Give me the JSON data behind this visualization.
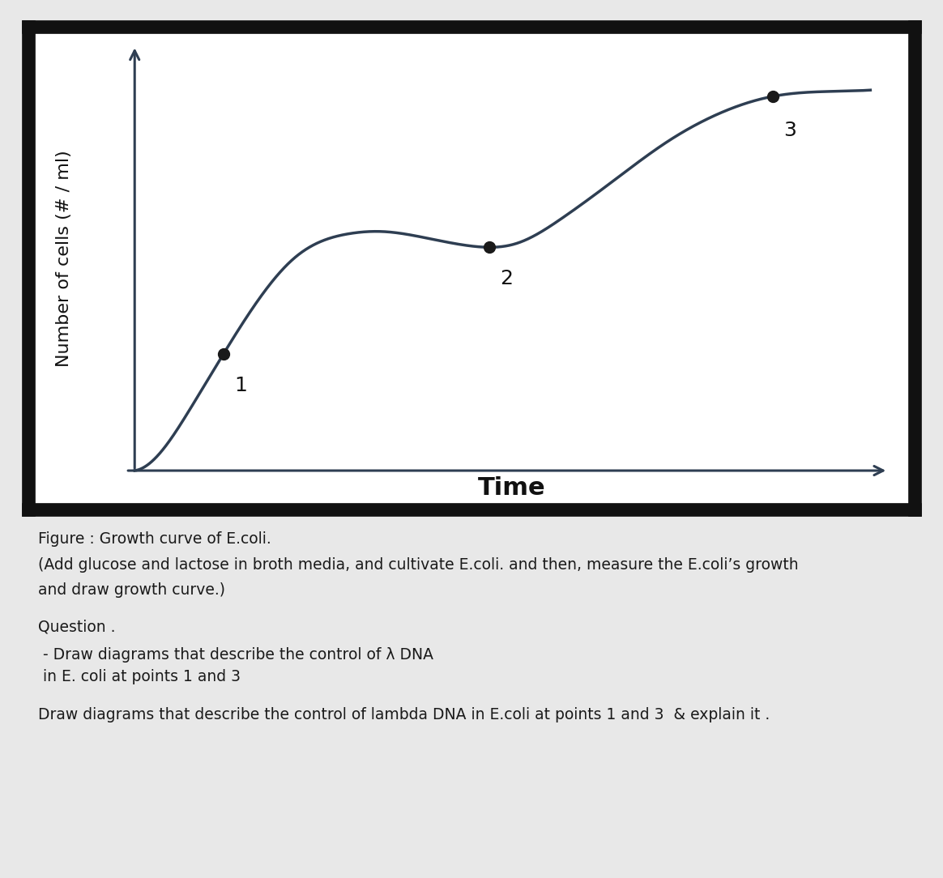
{
  "ylabel": "Number of cells (# / ml)",
  "xlabel": "Time",
  "curve_color": "#2e3e52",
  "axis_color": "#2e3e52",
  "point_color": "#1a1a1a",
  "point1_label": "1",
  "point2_label": "2",
  "point3_label": "3",
  "background_color": "#ffffff",
  "border_color": "#111111",
  "fig_background": "#e8e8e8",
  "figure_caption_line1": "Figure : Growth curve of E.coli.",
  "figure_caption_line2": "(Add glucose and lactose in broth media, and cultivate E.coli. and then, measure the E.coli’s growth",
  "figure_caption_line3": "and draw growth curve.)",
  "question_line": "Question .",
  "bullet_line1": " - Draw diagrams that describe the control of λ DNA",
  "bullet_line2": " in E. coli at points 1 and 3",
  "bottom_line": "Draw diagrams that describe the control of lambda DNA in E.coli at points 1 and 3  & explain it ."
}
